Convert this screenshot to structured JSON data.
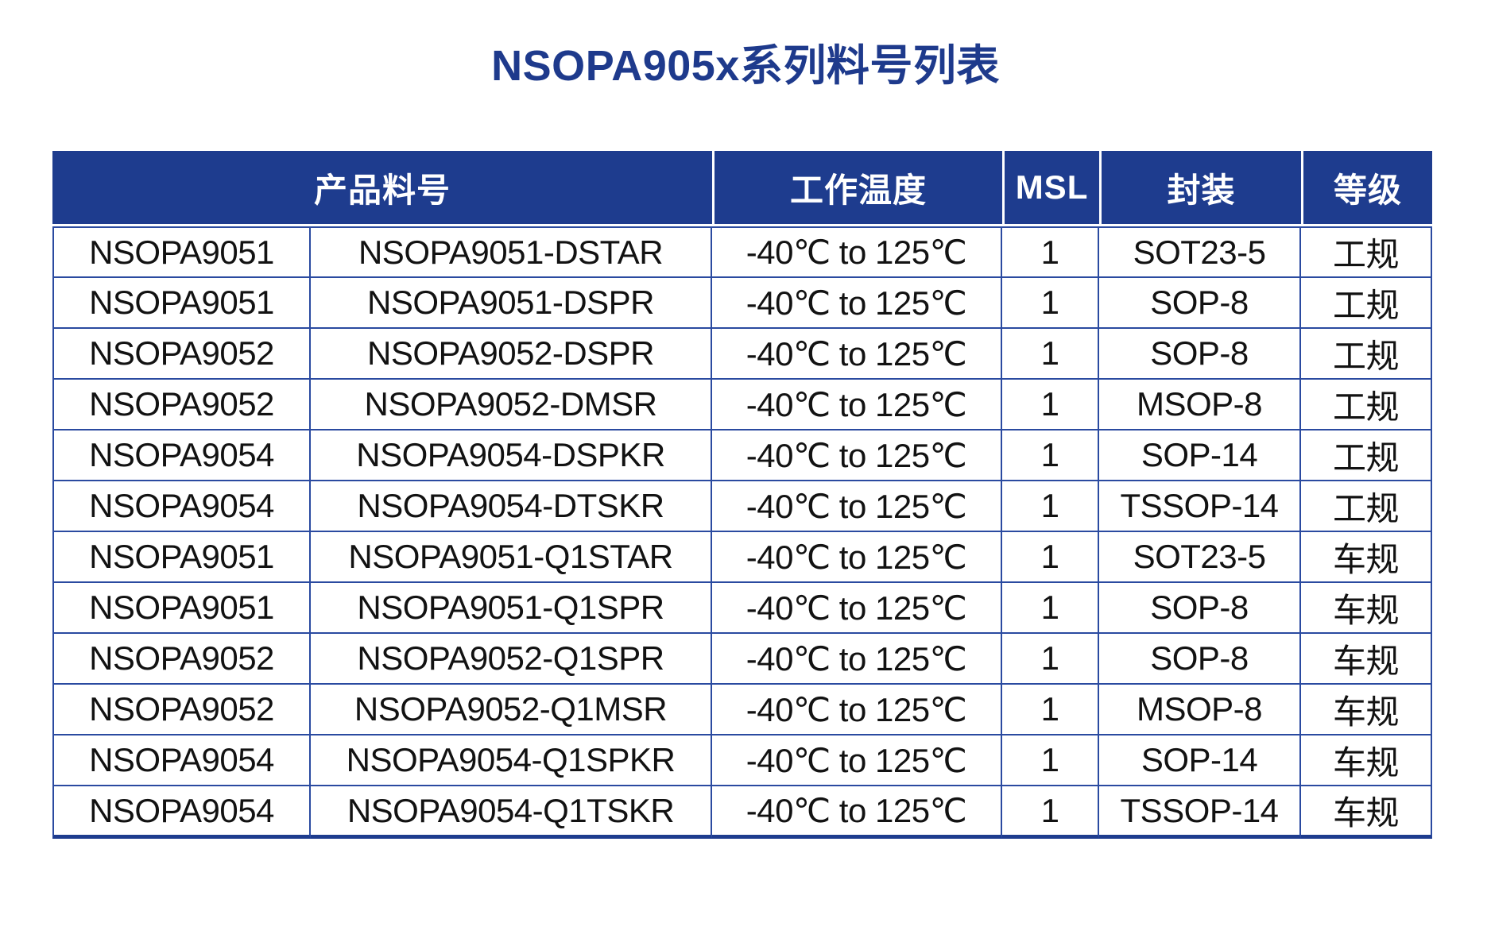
{
  "title": "NSOPA905x系列料号列表",
  "colors": {
    "navy": "#1e3c8e",
    "border": "#2a4aa0",
    "title-color": "#1e3a8c",
    "text": "#121212"
  },
  "table": {
    "headers": {
      "part_number": "产品料号",
      "temperature": "工作温度",
      "msl": "MSL",
      "package": "封装",
      "grade": "等级"
    },
    "rows": [
      {
        "series": "NSOPA9051",
        "part": "NSOPA9051-DSTAR",
        "temperature": "-40℃ to 125℃",
        "msl": "1",
        "package": "SOT23-5",
        "grade": "工规"
      },
      {
        "series": "NSOPA9051",
        "part": "NSOPA9051-DSPR",
        "temperature": "-40℃ to 125℃",
        "msl": "1",
        "package": "SOP-8",
        "grade": "工规"
      },
      {
        "series": "NSOPA9052",
        "part": "NSOPA9052-DSPR",
        "temperature": "-40℃ to 125℃",
        "msl": "1",
        "package": "SOP-8",
        "grade": "工规"
      },
      {
        "series": "NSOPA9052",
        "part": "NSOPA9052-DMSR",
        "temperature": "-40℃ to 125℃",
        "msl": "1",
        "package": "MSOP-8",
        "grade": "工规"
      },
      {
        "series": "NSOPA9054",
        "part": "NSOPA9054-DSPKR",
        "temperature": "-40℃ to 125℃",
        "msl": "1",
        "package": "SOP-14",
        "grade": "工规"
      },
      {
        "series": "NSOPA9054",
        "part": "NSOPA9054-DTSKR",
        "temperature": "-40℃ to 125℃",
        "msl": "1",
        "package": "TSSOP-14",
        "grade": "工规"
      },
      {
        "series": "NSOPA9051",
        "part": "NSOPA9051-Q1STAR",
        "temperature": "-40℃ to 125℃",
        "msl": "1",
        "package": "SOT23-5",
        "grade": "车规"
      },
      {
        "series": "NSOPA9051",
        "part": "NSOPA9051-Q1SPR",
        "temperature": "-40℃ to 125℃",
        "msl": "1",
        "package": "SOP-8",
        "grade": "车规"
      },
      {
        "series": "NSOPA9052",
        "part": "NSOPA9052-Q1SPR",
        "temperature": "-40℃ to 125℃",
        "msl": "1",
        "package": "SOP-8",
        "grade": "车规"
      },
      {
        "series": "NSOPA9052",
        "part": "NSOPA9052-Q1MSR",
        "temperature": "-40℃ to 125℃",
        "msl": "1",
        "package": "MSOP-8",
        "grade": "车规"
      },
      {
        "series": "NSOPA9054",
        "part": "NSOPA9054-Q1SPKR",
        "temperature": "-40℃ to 125℃",
        "msl": "1",
        "package": "SOP-14",
        "grade": "车规"
      },
      {
        "series": "NSOPA9054",
        "part": "NSOPA9054-Q1TSKR",
        "temperature": "-40℃ to 125℃",
        "msl": "1",
        "package": "TSSOP-14",
        "grade": "车规"
      }
    ]
  }
}
